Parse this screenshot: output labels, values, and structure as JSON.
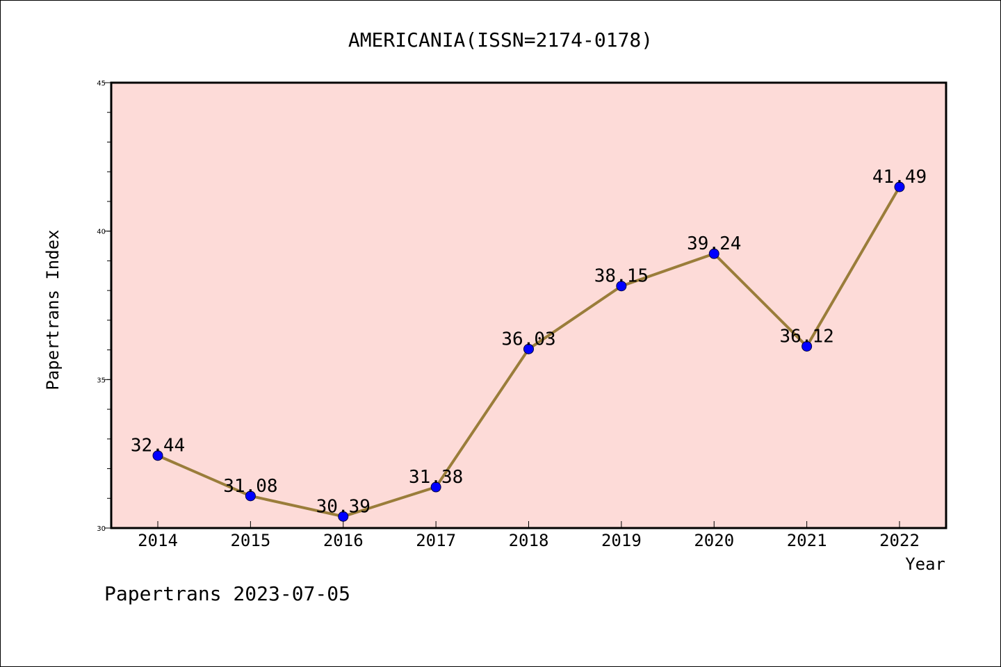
{
  "chart_data": {
    "type": "line",
    "title": "AMERICANIA(ISSN=2174-0178)",
    "xlabel": "Year",
    "ylabel": "Papertrans Index",
    "footer": "Papertrans 2023-07-05",
    "categories": [
      "2014",
      "2015",
      "2016",
      "2017",
      "2018",
      "2019",
      "2020",
      "2021",
      "2022"
    ],
    "series": [
      {
        "values": [
          32.44,
          31.08,
          30.39,
          31.38,
          36.03,
          38.15,
          39.24,
          36.12,
          41.49
        ],
        "labels": [
          "32.44",
          "31.08",
          "30.39",
          "31.38",
          "36.03",
          "38.15",
          "39.24",
          "36.12",
          "41.49"
        ],
        "line_color": "#9a7d3a",
        "marker_color": "#0000ff"
      }
    ],
    "ylim": [
      30,
      45
    ],
    "y_ticks": [
      "30",
      "35",
      "40",
      "45"
    ],
    "y_minor_step": 1,
    "plot_background": "#fddbd8",
    "grid": false
  }
}
